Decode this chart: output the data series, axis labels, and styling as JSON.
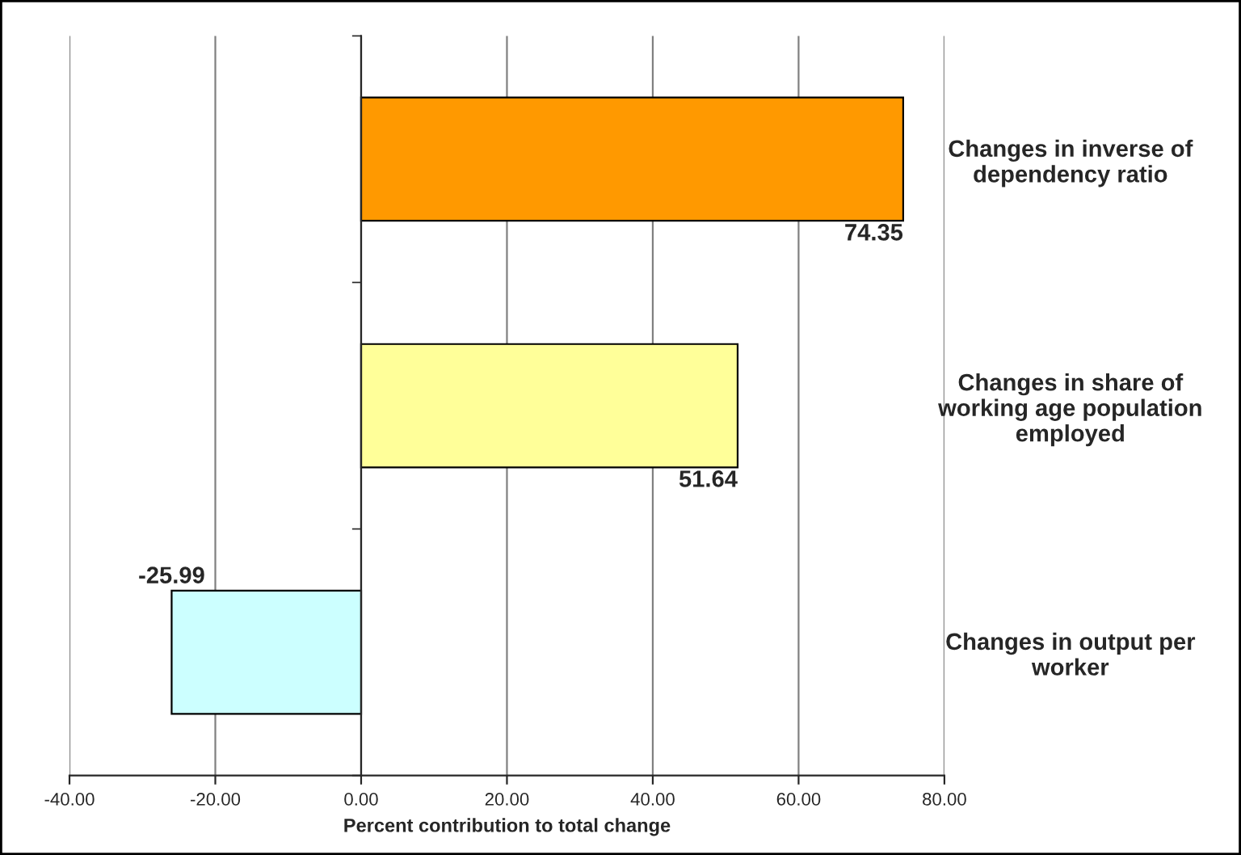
{
  "chart_data": {
    "type": "bar",
    "orientation": "horizontal",
    "xlabel": "Percent contribution to total change",
    "categories": [
      "Changes in inverse of\ndependency ratio",
      "Changes in share of\nworking age population\nemployed",
      "Changes in output per\nworker"
    ],
    "values": [
      74.35,
      51.64,
      -25.99
    ],
    "colors": [
      "#ff9900",
      "#ffff99",
      "#ccffff"
    ],
    "xlim": [
      -40,
      80
    ],
    "xticks": [
      {
        "value": -40,
        "label": "-40.00"
      },
      {
        "value": -20,
        "label": "-20.00"
      },
      {
        "value": 0,
        "label": "0.00"
      },
      {
        "value": 20,
        "label": "20.00"
      },
      {
        "value": 40,
        "label": "40.00"
      },
      {
        "value": 60,
        "label": "60.00"
      },
      {
        "value": 80,
        "label": "80.00"
      }
    ],
    "grid": "x",
    "data_labels": true,
    "legend": false
  }
}
